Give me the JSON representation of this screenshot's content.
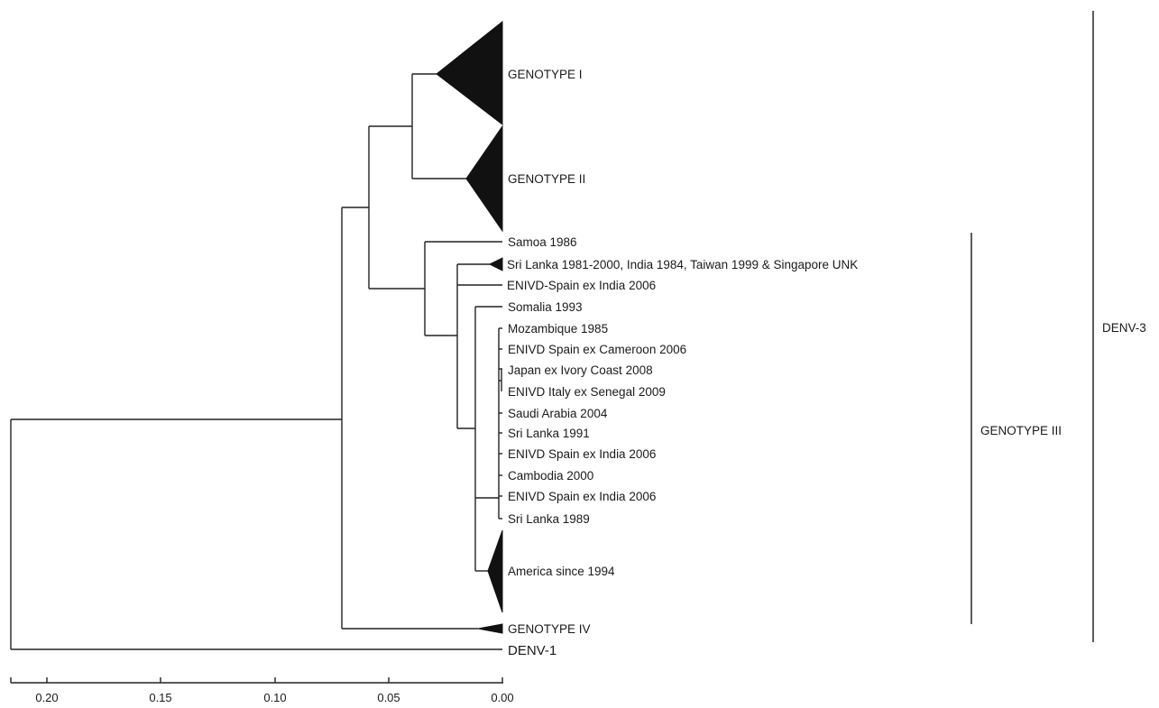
{
  "figure": {
    "clade_labels": {
      "genotype_1": "GENOTYPE I",
      "genotype_2": "GENOTYPE II",
      "america": "America since 1994",
      "genotype_4": "GENOTYPE IV",
      "srilanka_group": "Sri Lanka 1981-2000, India 1984, Taiwan 1999 & Singapore UNK"
    },
    "leaves": [
      "Samoa 1986",
      "ENIVD-Spain ex India 2006",
      "Somalia 1993",
      "Mozambique 1985",
      "ENIVD Spain ex Cameroon 2006",
      "Japan ex Ivory Coast 2008",
      "ENIVD Italy ex Senegal 2009",
      "Saudi Arabia 2004",
      "Sri Lanka 1991",
      "ENIVD Spain ex India 2006",
      "Cambodia 2000",
      "ENIVD Spain ex India 2006",
      "Sri Lanka 1989"
    ],
    "outgroup": "DENV-1",
    "group_brackets": {
      "genotype_3": "GENOTYPE III",
      "denv3": "DENV-3"
    },
    "scale_axis": {
      "ticks": [
        "0.20",
        "0.15",
        "0.10",
        "0.05",
        "0.00"
      ]
    }
  }
}
